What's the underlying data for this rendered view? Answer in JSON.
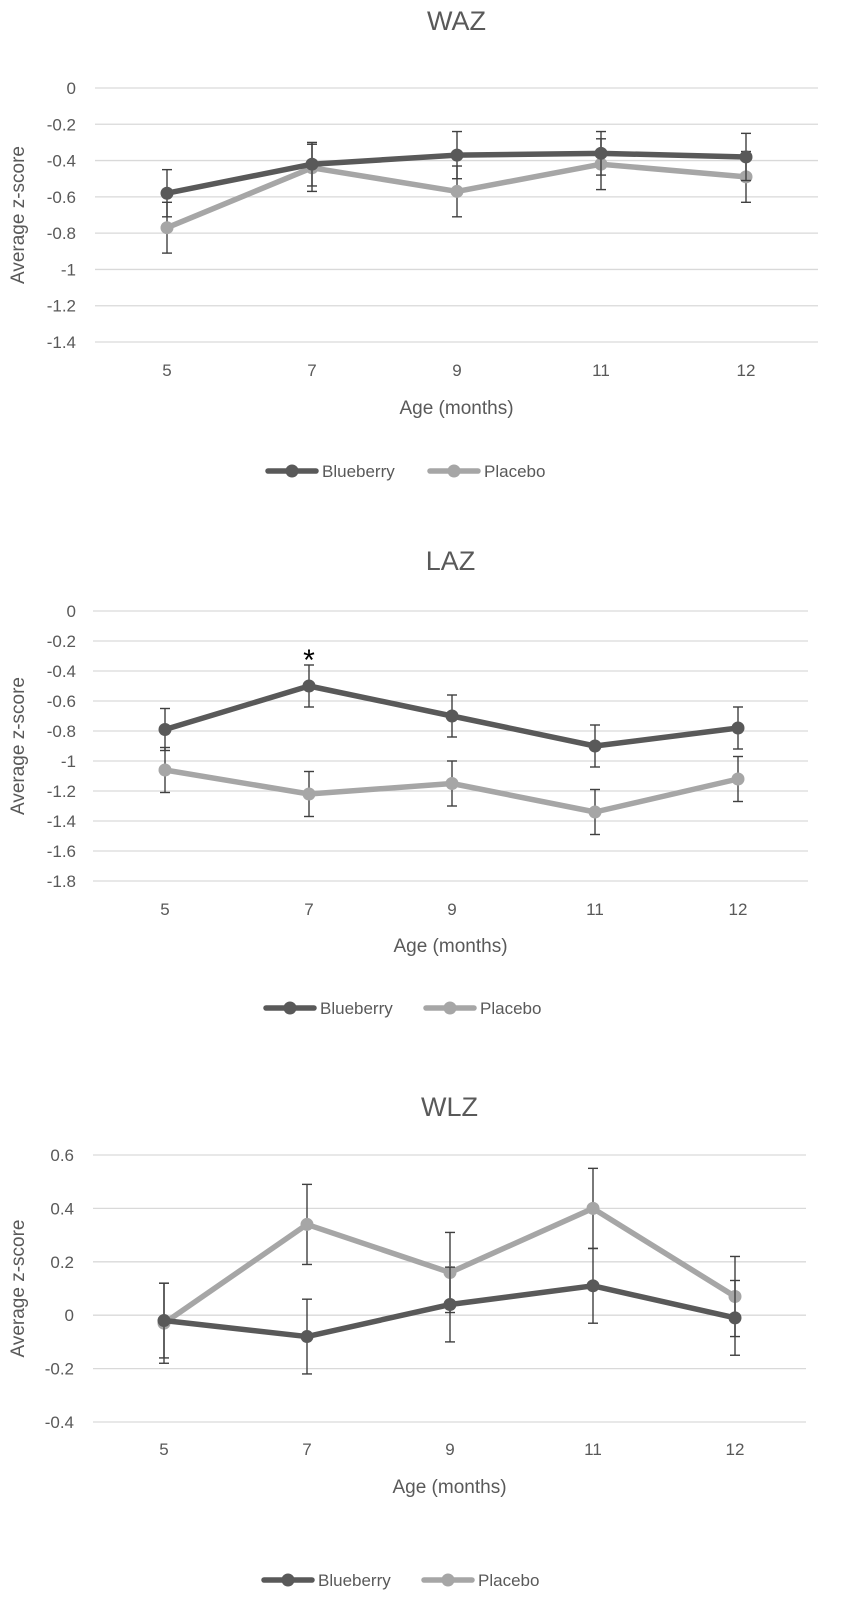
{
  "chart_data": [
    {
      "type": "line",
      "title": "WAZ",
      "xlabel": "Age (months)",
      "ylabel": "Average z-score",
      "categories": [
        "5",
        "7",
        "9",
        "11",
        "12"
      ],
      "ylim": [
        -1.4,
        0
      ],
      "yticks": [
        0,
        -0.2,
        -0.4,
        -0.6,
        -0.8,
        -1,
        -1.2,
        -1.4
      ],
      "ytick_labels": [
        "0",
        "-0.2",
        "-0.4",
        "-0.6",
        "-0.8",
        "-1",
        "-1.2",
        "-1.4"
      ],
      "grid": true,
      "legend_position": "bottom",
      "series": [
        {
          "name": "Blueberry",
          "color": "#595959",
          "values": [
            -0.58,
            -0.42,
            -0.37,
            -0.36,
            -0.38
          ],
          "errors": [
            0.13,
            0.12,
            0.13,
            0.12,
            0.13
          ]
        },
        {
          "name": "Placebo",
          "color": "#a6a6a6",
          "values": [
            -0.77,
            -0.44,
            -0.57,
            -0.42,
            -0.49
          ],
          "errors": [
            0.14,
            0.13,
            0.14,
            0.14,
            0.14
          ]
        }
      ],
      "annotations": []
    },
    {
      "type": "line",
      "title": "LAZ",
      "xlabel": "Age (months)",
      "ylabel": "Average z-score",
      "categories": [
        "5",
        "7",
        "9",
        "11",
        "12"
      ],
      "ylim": [
        -1.8,
        0
      ],
      "yticks": [
        0,
        -0.2,
        -0.4,
        -0.6,
        -0.8,
        -1,
        -1.2,
        -1.4,
        -1.6,
        -1.8
      ],
      "ytick_labels": [
        "0",
        "-0.2",
        "-0.4",
        "-0.6",
        "-0.8",
        "-1",
        "-1.2",
        "-1.4",
        "-1.6",
        "-1.8"
      ],
      "grid": true,
      "legend_position": "bottom",
      "series": [
        {
          "name": "Blueberry",
          "color": "#595959",
          "values": [
            -0.79,
            -0.5,
            -0.7,
            -0.9,
            -0.78
          ],
          "errors": [
            0.14,
            0.14,
            0.14,
            0.14,
            0.14
          ]
        },
        {
          "name": "Placebo",
          "color": "#a6a6a6",
          "values": [
            -1.06,
            -1.22,
            -1.15,
            -1.34,
            -1.12
          ],
          "errors": [
            0.15,
            0.15,
            0.15,
            0.15,
            0.15
          ]
        }
      ],
      "annotations": [
        {
          "text": "*",
          "category": "7",
          "y": -0.3
        }
      ]
    },
    {
      "type": "line",
      "title": "WLZ",
      "xlabel": "Age (months)",
      "ylabel": "Average z-score",
      "categories": [
        "5",
        "7",
        "9",
        "11",
        "12"
      ],
      "ylim": [
        -0.4,
        0.6
      ],
      "yticks": [
        0.6,
        0.4,
        0.2,
        0,
        -0.2,
        -0.4
      ],
      "ytick_labels": [
        "0.6",
        "0.4",
        "0.2",
        "0",
        "-0.2",
        "-0.4"
      ],
      "grid": true,
      "legend_position": "bottom",
      "series": [
        {
          "name": "Blueberry",
          "color": "#595959",
          "values": [
            -0.02,
            -0.08,
            0.04,
            0.11,
            -0.01
          ],
          "errors": [
            0.14,
            0.14,
            0.14,
            0.14,
            0.14
          ]
        },
        {
          "name": "Placebo",
          "color": "#a6a6a6",
          "values": [
            -0.03,
            0.34,
            0.16,
            0.4,
            0.07
          ],
          "errors": [
            0.15,
            0.15,
            0.15,
            0.15,
            0.15
          ]
        }
      ],
      "annotations": []
    }
  ]
}
